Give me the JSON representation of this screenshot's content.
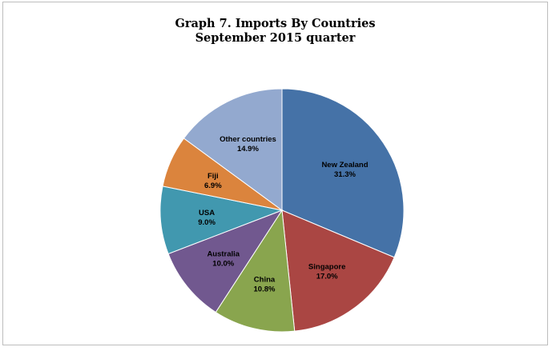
{
  "chart_data": {
    "type": "pie",
    "title_line1": "Graph 7. Imports By Countries",
    "title_line2": "September 2015 quarter",
    "slices": [
      {
        "label": "New Zealand",
        "value_label": "31.3%",
        "value": 31.3,
        "color": "#4572a7"
      },
      {
        "label": "Singapore",
        "value_label": "17.0%",
        "value": 17.0,
        "color": "#aa4643"
      },
      {
        "label": "China",
        "value_label": "10.8%",
        "value": 10.8,
        "color": "#89a54e"
      },
      {
        "label": "Australia",
        "value_label": "10.0%",
        "value": 10.0,
        "color": "#71588f"
      },
      {
        "label": "USA",
        "value_label": "9.0%",
        "value": 9.0,
        "color": "#4198af"
      },
      {
        "label": "Fiji",
        "value_label": "6.9%",
        "value": 6.9,
        "color": "#db843d"
      },
      {
        "label": "Other countries",
        "value_label": "14.9%",
        "value": 14.9,
        "color": "#93a9cf"
      }
    ]
  }
}
